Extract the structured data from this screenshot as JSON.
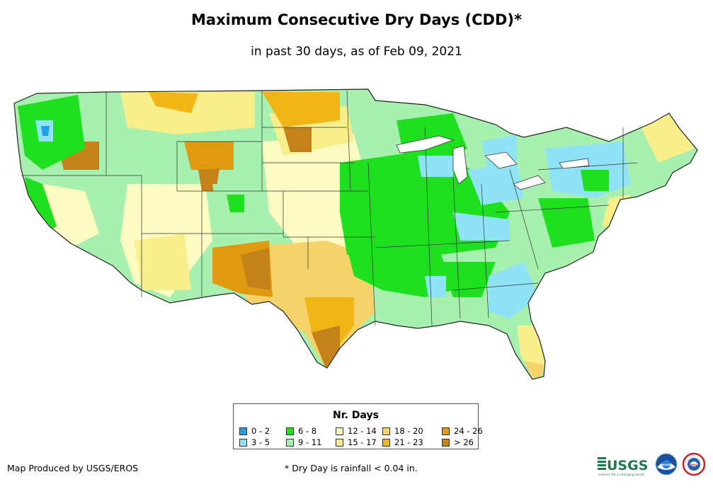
{
  "title": "Maximum Consecutive Dry Days (CDD)*",
  "subtitle": "in past 30 days, as of Feb 09, 2021",
  "legend": {
    "title": "Nr. Days",
    "items": [
      {
        "label": "0 - 2",
        "color": "#1f9fe8"
      },
      {
        "label": "3 - 5",
        "color": "#8ee3f7"
      },
      {
        "label": "6 - 8",
        "color": "#1ee01e"
      },
      {
        "label": "9 - 11",
        "color": "#a8f0b0"
      },
      {
        "label": "12 - 14",
        "color": "#fbfbc2"
      },
      {
        "label": "15 - 17",
        "color": "#f8ee8a"
      },
      {
        "label": "18 - 20",
        "color": "#f5d36a"
      },
      {
        "label": "21 - 23",
        "color": "#f2b516"
      },
      {
        "label": "24 - 26",
        "color": "#e09a10"
      },
      {
        "label": "> 26",
        "color": "#c5821a"
      }
    ]
  },
  "credit": "Map Produced by USGS/EROS",
  "footnote": "* Dry Day is rainfall < 0.04 in.",
  "logos": {
    "usgs": "USGS",
    "usgs_tagline": "science for a changing world",
    "noaa": "NOAA",
    "nws": "NWS"
  }
}
